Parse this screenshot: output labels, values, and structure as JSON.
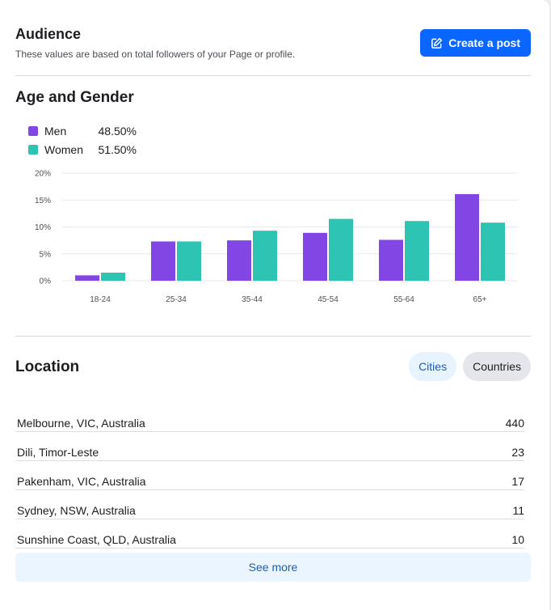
{
  "audience": {
    "title": "Audience",
    "subtitle": "These values are based on total followers of your Page or profile.",
    "create_post_label": "Create a post",
    "create_post_icon": "edit-icon"
  },
  "age_gender": {
    "title": "Age and Gender",
    "legend": [
      {
        "label": "Men",
        "value": "48.50%",
        "color": "#8246e5"
      },
      {
        "label": "Women",
        "value": "51.50%",
        "color": "#2ec4b4"
      }
    ]
  },
  "chart_data": {
    "type": "bar",
    "categories": [
      "18-24",
      "25-34",
      "35-44",
      "45-54",
      "55-64",
      "65+"
    ],
    "series": [
      {
        "name": "Men",
        "color": "#8246e5",
        "values": [
          1.0,
          7.3,
          7.5,
          8.9,
          7.6,
          16.1
        ]
      },
      {
        "name": "Women",
        "color": "#2ec4b4",
        "values": [
          1.5,
          7.3,
          9.3,
          11.5,
          11.1,
          10.8
        ]
      }
    ],
    "yticks": [
      "0%",
      "5%",
      "10%",
      "15%",
      "20%"
    ],
    "ylim": [
      0,
      20
    ],
    "grid": true
  },
  "location": {
    "title": "Location",
    "tabs": [
      {
        "label": "Cities",
        "active": true
      },
      {
        "label": "Countries",
        "active": false
      }
    ],
    "rows": [
      {
        "name": "Melbourne, VIC, Australia",
        "count": "440"
      },
      {
        "name": "Dili, Timor-Leste",
        "count": "23"
      },
      {
        "name": "Pakenham, VIC, Australia",
        "count": "17"
      },
      {
        "name": "Sydney, NSW, Australia",
        "count": "11"
      },
      {
        "name": "Sunshine Coast, QLD, Australia",
        "count": "10"
      }
    ],
    "see_more_label": "See more"
  }
}
